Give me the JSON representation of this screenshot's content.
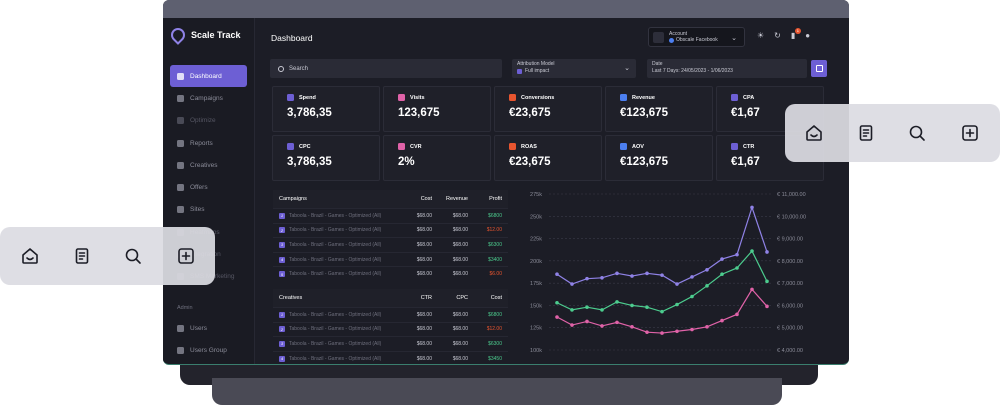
{
  "app": {
    "name": "Scale Track"
  },
  "sidebar": {
    "items": [
      {
        "label": "Dashboard",
        "active": true
      },
      {
        "label": "Campaigns"
      },
      {
        "label": "Optimize"
      },
      {
        "label": "Reports"
      },
      {
        "label": "Creatives"
      },
      {
        "label": "Offers"
      },
      {
        "label": "Sites"
      },
      {
        "label": "Heatmaps"
      },
      {
        "label": "Integration"
      },
      {
        "label": "SMS Marketing"
      }
    ],
    "admin_label": "Admin",
    "admin_items": [
      {
        "label": "Users"
      },
      {
        "label": "Users Group"
      }
    ]
  },
  "header": {
    "title": "Dashboard",
    "account_label": "Account",
    "account_value": "Obscale Facebook",
    "notification_count": "1"
  },
  "filters": {
    "search_label": "Search",
    "attribution_label": "Attribution Model",
    "attribution_value": "Full impact",
    "date_label": "Date",
    "date_value": "Last 7 Days: 24/05/2023 - 1/06/2023"
  },
  "kpis": [
    {
      "label": "Spend",
      "value": "3,786,35",
      "color": "#6d5fd4"
    },
    {
      "label": "Visits",
      "value": "123,675",
      "color": "#e062a8"
    },
    {
      "label": "Conversions",
      "value": "€23,675",
      "color": "#e8552f"
    },
    {
      "label": "Revenue",
      "value": "€123,675",
      "color": "#4c7ff0"
    },
    {
      "label": "CPA",
      "value": "€1,67",
      "color": "#6d5fd4"
    },
    {
      "label": "CPC",
      "value": "3,786,35",
      "color": "#6d5fd4"
    },
    {
      "label": "CVR",
      "value": "2%",
      "color": "#e062a8"
    },
    {
      "label": "ROAS",
      "value": "€23,675",
      "color": "#e8552f"
    },
    {
      "label": "AOV",
      "value": "€123,675",
      "color": "#4c7ff0"
    },
    {
      "label": "CTR",
      "value": "€1,67",
      "color": "#6d5fd4"
    }
  ],
  "campaigns_table": {
    "headers": [
      "Campaigns",
      "Cost",
      "Revenue",
      "Profit"
    ],
    "rows": [
      {
        "idx": "1",
        "name": "Taboola - Brazil - Games - Optimized (All)",
        "cost": "$68.00",
        "revenue": "$68.00",
        "profit": "$6800",
        "status": "green"
      },
      {
        "idx": "2",
        "name": "Taboola - Brazil - Games - Optimized (All)",
        "cost": "$68.00",
        "revenue": "$68.00",
        "profit": "$12.00",
        "status": "red"
      },
      {
        "idx": "3",
        "name": "Taboola - Brazil - Games - Optimized (All)",
        "cost": "$68.00",
        "revenue": "$68.00",
        "profit": "$6300",
        "status": "green"
      },
      {
        "idx": "4",
        "name": "Taboola - Brazil - Games - Optimized (All)",
        "cost": "$68.00",
        "revenue": "$68.00",
        "profit": "$3400",
        "status": "green"
      },
      {
        "idx": "5",
        "name": "Taboola - Brazil - Games - Optimized (All)",
        "cost": "$68.00",
        "revenue": "$68.00",
        "profit": "$6.00",
        "status": "red"
      }
    ]
  },
  "creatives_table": {
    "headers": [
      "Creatives",
      "CTR",
      "CPC",
      "Cost"
    ],
    "rows": [
      {
        "idx": "1",
        "name": "Taboola - Brazil - Games - Optimized (All)",
        "ctr": "$68.00",
        "cpc": "$68.00",
        "cost": "$6800",
        "status": "green"
      },
      {
        "idx": "2",
        "name": "Taboola - Brazil - Games - Optimized (All)",
        "ctr": "$68.00",
        "cpc": "$68.00",
        "cost": "$12.00",
        "status": "red"
      },
      {
        "idx": "3",
        "name": "Taboola - Brazil - Games - Optimized (All)",
        "ctr": "$68.00",
        "cpc": "$68.00",
        "cost": "$6300",
        "status": "green"
      },
      {
        "idx": "4",
        "name": "Taboola - Brazil - Games - Optimized (All)",
        "ctr": "$68.00",
        "cpc": "$68.00",
        "cost": "$3450",
        "status": "green"
      }
    ]
  },
  "chart_data": {
    "type": "line",
    "left_ticks": [
      "275k",
      "250k",
      "225k",
      "200k",
      "175k",
      "150k",
      "125k",
      "100k"
    ],
    "right_ticks": [
      "€ 11,000.00",
      "€ 10,000.00",
      "€ 9,000.00",
      "€ 8,000.00",
      "€ 7,000.00",
      "€ 6,000.00",
      "€ 5,000.00",
      "€ 4,000.00"
    ],
    "ylim": [
      100000,
      275000
    ],
    "points_count": 15,
    "series": [
      {
        "color": "#8f82e6",
        "values": [
          185000,
          174000,
          180000,
          181000,
          186000,
          183000,
          186000,
          184000,
          174000,
          182000,
          190000,
          202000,
          207000,
          260000,
          210000
        ]
      },
      {
        "color": "#4ccc8e",
        "values": [
          153000,
          145000,
          148000,
          145000,
          154000,
          150000,
          148000,
          143000,
          151000,
          160000,
          172000,
          185000,
          192000,
          211000,
          177000
        ]
      },
      {
        "color": "#e062a8",
        "values": [
          137000,
          128000,
          132000,
          127000,
          131000,
          126000,
          120000,
          119000,
          121000,
          123000,
          126000,
          133000,
          140000,
          168000,
          149000
        ]
      }
    ]
  },
  "floating_docks": {
    "icons": [
      "home-icon",
      "document-icon",
      "search-icon",
      "add-icon"
    ]
  }
}
